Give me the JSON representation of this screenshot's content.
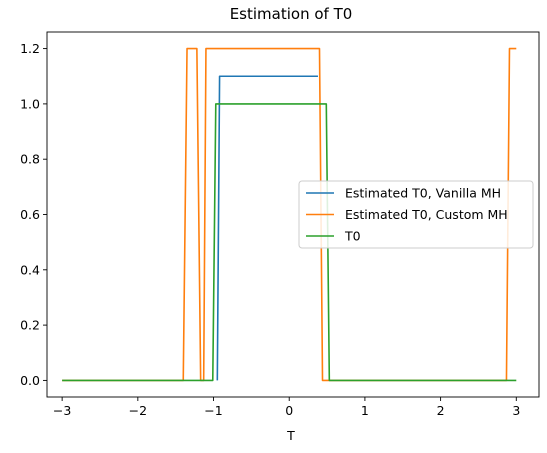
{
  "chart_data": {
    "type": "line",
    "title": "Estimation of T0",
    "xlabel": "T",
    "ylabel": "",
    "xlim": [
      -3.2,
      3.3
    ],
    "ylim": [
      -0.06,
      1.26
    ],
    "xticks": [
      -3,
      -2,
      -1,
      0,
      1,
      2,
      3
    ],
    "xtick_labels": [
      "−3",
      "−2",
      "−1",
      "0",
      "1",
      "2",
      "3"
    ],
    "yticks": [
      0.0,
      0.2,
      0.4,
      0.6,
      0.8,
      1.0,
      1.2
    ],
    "ytick_labels": [
      "0.0",
      "0.2",
      "0.4",
      "0.6",
      "0.8",
      "1.0",
      "1.2"
    ],
    "grid": false,
    "legend_position": "center-right",
    "series": [
      {
        "name": "Estimated T0, Vanilla MH",
        "color": "#1f77b4",
        "x": [
          -0.95,
          -0.92,
          0.38
        ],
        "y": [
          0.0,
          1.1,
          1.1
        ]
      },
      {
        "name": "Estimated T0, Custom MH",
        "color": "#ff7f0e",
        "x": [
          -3.0,
          -1.4,
          -1.35,
          -1.22,
          -1.17,
          -1.13,
          -1.1,
          0.4,
          0.44,
          2.87,
          2.91,
          3.0
        ],
        "y": [
          0.0,
          0.0,
          1.2,
          1.2,
          0.0,
          0.0,
          1.2,
          1.2,
          0.0,
          0.0,
          1.2,
          1.2
        ]
      },
      {
        "name": "T0",
        "color": "#2ca02c",
        "x": [
          -3.0,
          -1.01,
          -0.97,
          0.49,
          0.53,
          3.0
        ],
        "y": [
          0.0,
          0.0,
          1.0,
          1.0,
          0.0,
          0.0
        ]
      }
    ]
  }
}
